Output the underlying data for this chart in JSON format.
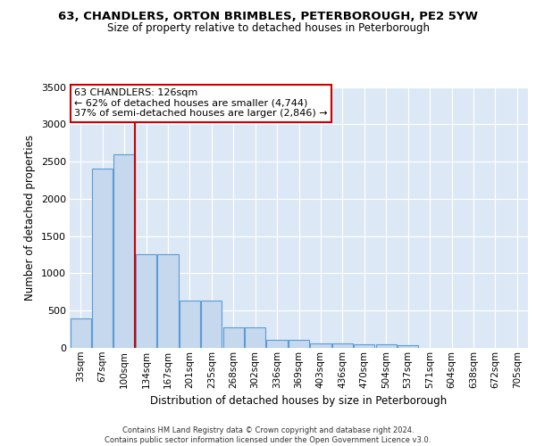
{
  "title1": "63, CHANDLERS, ORTON BRIMBLES, PETERBOROUGH, PE2 5YW",
  "title2": "Size of property relative to detached houses in Peterborough",
  "xlabel": "Distribution of detached houses by size in Peterborough",
  "ylabel": "Number of detached properties",
  "categories": [
    "33sqm",
    "67sqm",
    "100sqm",
    "134sqm",
    "167sqm",
    "201sqm",
    "235sqm",
    "268sqm",
    "302sqm",
    "336sqm",
    "369sqm",
    "403sqm",
    "436sqm",
    "470sqm",
    "504sqm",
    "537sqm",
    "571sqm",
    "604sqm",
    "638sqm",
    "672sqm",
    "705sqm"
  ],
  "values": [
    390,
    2400,
    2600,
    1260,
    1260,
    640,
    640,
    270,
    270,
    110,
    110,
    60,
    60,
    50,
    50,
    30,
    0,
    0,
    0,
    0,
    0
  ],
  "bar_color": "#c5d8ed",
  "bar_edgecolor": "#5b9bd5",
  "vline_x": 2.5,
  "vline_color": "#cc0000",
  "annotation_line1": "63 CHANDLERS: 126sqm",
  "annotation_line2": "← 62% of detached houses are smaller (4,744)",
  "annotation_line3": "37% of semi-detached houses are larger (2,846) →",
  "ylim": [
    0,
    3500
  ],
  "yticks": [
    0,
    500,
    1000,
    1500,
    2000,
    2500,
    3000,
    3500
  ],
  "plot_bg_color": "#dce8f5",
  "grid_color": "#ffffff",
  "footer_line1": "Contains HM Land Registry data © Crown copyright and database right 2024.",
  "footer_line2": "Contains public sector information licensed under the Open Government Licence v3.0."
}
